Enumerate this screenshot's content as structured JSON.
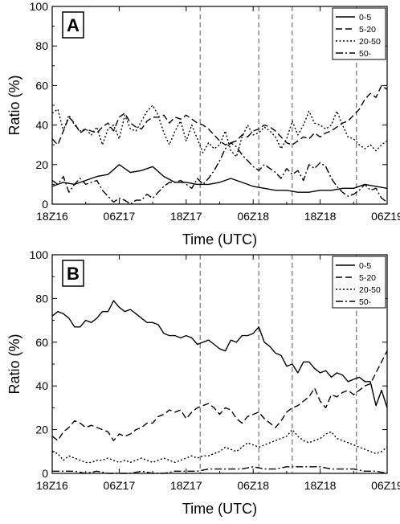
{
  "charts": [
    {
      "panel_label": "A",
      "ylabel": "Ratio (%)",
      "xlabel": "Time (UTC)",
      "legend": [
        "0-5",
        "5-20",
        "20-50",
        "50-"
      ]
    },
    {
      "panel_label": "B",
      "ylabel": "Ratio (%)",
      "xlabel": "Time (UTC)",
      "legend": [
        "0-5",
        "5-20",
        "20-50",
        "50-"
      ]
    }
  ],
  "chart_data": [
    {
      "type": "line",
      "panel": "A",
      "xlabel": "Time (UTC)",
      "ylabel": "Ratio (%)",
      "ylim": [
        0,
        100
      ],
      "yticks": [
        0,
        20,
        40,
        60,
        80,
        100
      ],
      "xtick_labels": [
        "18Z16",
        "06Z17",
        "18Z17",
        "06Z18",
        "18Z18",
        "06Z19"
      ],
      "xlim_hours": [
        0,
        60
      ],
      "vlines_hours": [
        26.5,
        37,
        43,
        54.5
      ],
      "legend_position": "top-right",
      "series": [
        {
          "name": "0-5",
          "dash": "solid",
          "x": [
            0,
            2,
            4,
            6,
            8,
            10,
            12,
            14,
            16,
            18,
            20,
            22,
            24,
            26,
            28,
            30,
            32,
            34,
            36,
            38,
            40,
            42,
            44,
            46,
            48,
            50,
            52,
            54,
            56,
            58,
            60
          ],
          "y": [
            9,
            11,
            10,
            12,
            14,
            15,
            20,
            16,
            17,
            19,
            14,
            11,
            11,
            10,
            10,
            11,
            13,
            11,
            9,
            8,
            7,
            7,
            6,
            6,
            7,
            7,
            8,
            8,
            10,
            9,
            8
          ]
        },
        {
          "name": "5-20",
          "dash": "dashed",
          "x": [
            0,
            1,
            2,
            3,
            4,
            5,
            6,
            7,
            8,
            9,
            10,
            11,
            12,
            13,
            14,
            15,
            16,
            17,
            18,
            19,
            20,
            21,
            22,
            23,
            24,
            25,
            26,
            27,
            28,
            29,
            30,
            31,
            32,
            33,
            34,
            35,
            36,
            37,
            38,
            39,
            40,
            41,
            42,
            43,
            44,
            45,
            46,
            47,
            48,
            49,
            50,
            51,
            52,
            53,
            54,
            55,
            56,
            57,
            58,
            59,
            60
          ],
          "y": [
            33,
            30,
            37,
            44,
            41,
            36,
            38,
            37,
            36,
            39,
            41,
            37,
            44,
            46,
            41,
            39,
            38,
            42,
            44,
            44,
            45,
            41,
            44,
            43,
            45,
            43,
            41,
            40,
            38,
            35,
            32,
            30,
            31,
            32,
            35,
            34,
            37,
            38,
            40,
            39,
            37,
            34,
            31,
            30,
            32,
            34,
            33,
            36,
            34,
            36,
            37,
            39,
            41,
            42,
            45,
            48,
            53,
            56,
            54,
            60,
            58
          ]
        },
        {
          "name": "20-50",
          "dash": "dotted",
          "x": [
            0,
            1,
            2,
            3,
            4,
            5,
            6,
            7,
            8,
            9,
            10,
            11,
            12,
            13,
            14,
            15,
            16,
            17,
            18,
            19,
            20,
            21,
            22,
            23,
            24,
            25,
            26,
            27,
            28,
            29,
            30,
            31,
            32,
            33,
            34,
            35,
            36,
            37,
            38,
            39,
            40,
            41,
            42,
            43,
            44,
            45,
            46,
            47,
            48,
            49,
            50,
            51,
            52,
            53,
            54,
            55,
            56,
            57,
            58,
            59,
            60
          ],
          "y": [
            46,
            48,
            37,
            45,
            40,
            37,
            38,
            35,
            39,
            30,
            38,
            40,
            33,
            45,
            38,
            37,
            42,
            47,
            50,
            45,
            36,
            30,
            37,
            42,
            32,
            40,
            33,
            26,
            31,
            28,
            30,
            37,
            27,
            24,
            34,
            40,
            35,
            36,
            39,
            37,
            34,
            28,
            33,
            42,
            35,
            40,
            47,
            41,
            40,
            38,
            40,
            47,
            40,
            34,
            33,
            30,
            28,
            30,
            27,
            30,
            32
          ]
        },
        {
          "name": "50-",
          "dash": "dashdot",
          "x": [
            0,
            1,
            2,
            3,
            4,
            5,
            6,
            7,
            8,
            9,
            10,
            11,
            12,
            13,
            14,
            15,
            16,
            17,
            18,
            19,
            20,
            21,
            22,
            23,
            24,
            25,
            26,
            27,
            28,
            29,
            30,
            31,
            32,
            33,
            34,
            35,
            36,
            37,
            38,
            39,
            40,
            41,
            42,
            43,
            44,
            45,
            46,
            47,
            48,
            49,
            50,
            51,
            52,
            53,
            54,
            55,
            56,
            57,
            58,
            59,
            60
          ],
          "y": [
            12,
            10,
            14,
            6,
            10,
            13,
            10,
            11,
            12,
            7,
            4,
            1,
            3,
            2,
            0,
            2,
            2,
            5,
            3,
            6,
            9,
            11,
            11,
            12,
            10,
            8,
            13,
            10,
            13,
            17,
            22,
            28,
            31,
            29,
            25,
            22,
            19,
            17,
            20,
            18,
            16,
            13,
            18,
            15,
            17,
            12,
            20,
            18,
            21,
            19,
            13,
            9,
            6,
            4,
            5,
            7,
            10,
            7,
            8,
            3,
            1
          ]
        }
      ]
    },
    {
      "type": "line",
      "panel": "B",
      "xlabel": "Time (UTC)",
      "ylabel": "Ratio (%)",
      "ylim": [
        0,
        100
      ],
      "yticks": [
        0,
        20,
        40,
        60,
        80,
        100
      ],
      "xtick_labels": [
        "18Z16",
        "06Z17",
        "18Z17",
        "06Z18",
        "18Z18",
        "06Z19"
      ],
      "xlim_hours": [
        0,
        60
      ],
      "vlines_hours": [
        26.5,
        37,
        43,
        54.5
      ],
      "legend_position": "top-right",
      "series": [
        {
          "name": "0-5",
          "dash": "solid",
          "x": [
            0,
            1,
            2,
            3,
            4,
            5,
            6,
            7,
            8,
            9,
            10,
            11,
            12,
            13,
            14,
            15,
            16,
            17,
            18,
            19,
            20,
            21,
            22,
            23,
            24,
            25,
            26,
            27,
            28,
            29,
            30,
            31,
            32,
            33,
            34,
            35,
            36,
            37,
            38,
            39,
            40,
            41,
            42,
            43,
            44,
            45,
            46,
            47,
            48,
            49,
            50,
            51,
            52,
            53,
            54,
            55,
            56,
            57,
            58,
            59,
            60
          ],
          "y": [
            72,
            74,
            73,
            71,
            67,
            67,
            70,
            69,
            71,
            74,
            74,
            79,
            76,
            74,
            75,
            73,
            71,
            69,
            69,
            68,
            64,
            63,
            63,
            62,
            63,
            62,
            59,
            60,
            61,
            59,
            57,
            56,
            61,
            60,
            63,
            63,
            64,
            67,
            60,
            58,
            55,
            54,
            49,
            50,
            46,
            51,
            51,
            48,
            46,
            47,
            44,
            46,
            45,
            42,
            43,
            44,
            42,
            42,
            31,
            38,
            30
          ]
        },
        {
          "name": "5-20",
          "dash": "dashed",
          "x": [
            0,
            1,
            2,
            3,
            4,
            5,
            6,
            7,
            8,
            9,
            10,
            11,
            12,
            13,
            14,
            15,
            16,
            17,
            18,
            19,
            20,
            21,
            22,
            23,
            24,
            25,
            26,
            27,
            28,
            29,
            30,
            31,
            32,
            33,
            34,
            35,
            36,
            37,
            38,
            39,
            40,
            41,
            42,
            43,
            44,
            45,
            46,
            47,
            48,
            49,
            50,
            51,
            52,
            53,
            54,
            55,
            56,
            57,
            58,
            59,
            60
          ],
          "y": [
            17,
            15,
            19,
            21,
            24,
            23,
            21,
            22,
            21,
            20,
            19,
            15,
            18,
            17,
            18,
            20,
            21,
            23,
            23,
            26,
            27,
            29,
            28,
            29,
            25,
            28,
            30,
            31,
            32,
            30,
            27,
            30,
            29,
            25,
            23,
            26,
            27,
            28,
            25,
            23,
            21,
            24,
            28,
            30,
            31,
            33,
            35,
            39,
            33,
            30,
            36,
            35,
            37,
            38,
            36,
            38,
            40,
            41,
            46,
            51,
            56
          ]
        },
        {
          "name": "20-50",
          "dash": "dotted",
          "x": [
            0,
            1,
            2,
            3,
            4,
            5,
            6,
            7,
            8,
            9,
            10,
            11,
            12,
            13,
            14,
            15,
            16,
            17,
            18,
            19,
            20,
            21,
            22,
            23,
            24,
            25,
            26,
            27,
            28,
            29,
            30,
            31,
            32,
            33,
            34,
            35,
            36,
            37,
            38,
            39,
            40,
            41,
            42,
            43,
            44,
            45,
            46,
            47,
            48,
            49,
            50,
            51,
            52,
            53,
            54,
            55,
            56,
            57,
            58,
            59,
            60
          ],
          "y": [
            10,
            9,
            6,
            8,
            7,
            6,
            5,
            5,
            6,
            6,
            7,
            6,
            5,
            6,
            5,
            6,
            7,
            6,
            5,
            6,
            7,
            6,
            5,
            6,
            7,
            8,
            7,
            8,
            8,
            9,
            10,
            12,
            11,
            10,
            12,
            14,
            13,
            12,
            13,
            14,
            15,
            16,
            17,
            20,
            17,
            15,
            14,
            15,
            16,
            18,
            19,
            16,
            15,
            14,
            13,
            12,
            11,
            10,
            9,
            10,
            12
          ]
        },
        {
          "name": "50-",
          "dash": "dashdot",
          "x": [
            0,
            2,
            4,
            6,
            8,
            10,
            12,
            14,
            16,
            18,
            20,
            22,
            24,
            26,
            28,
            30,
            32,
            34,
            36,
            38,
            40,
            42,
            44,
            46,
            48,
            50,
            52,
            54,
            56,
            58,
            60
          ],
          "y": [
            1,
            1,
            1,
            0,
            1,
            0,
            0,
            0,
            1,
            0,
            0,
            1,
            1,
            1,
            2,
            2,
            2,
            2,
            3,
            2,
            2,
            3,
            3,
            3,
            3,
            2,
            2,
            2,
            1,
            1,
            0
          ]
        }
      ]
    }
  ]
}
